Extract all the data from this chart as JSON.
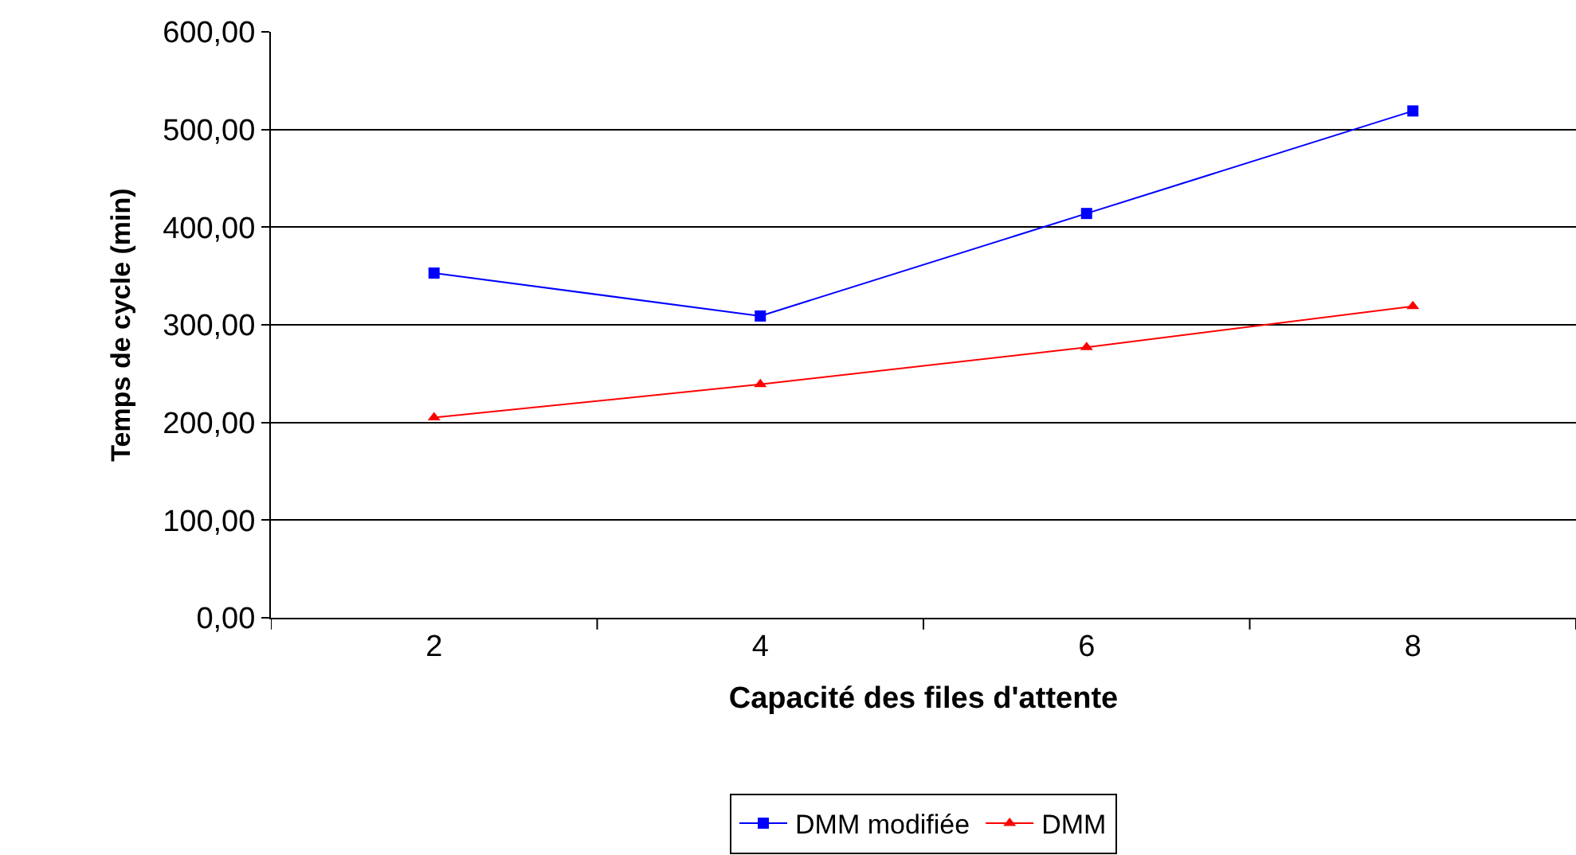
{
  "chart_data": {
    "type": "line",
    "xlabel": "Capacité des files d'attente",
    "ylabel": "Temps de cycle (min)",
    "categories": [
      "2",
      "4",
      "6",
      "8"
    ],
    "series": [
      {
        "name": "DMM modifiée",
        "color": "#0000ff",
        "marker": "square",
        "values": [
          353,
          309,
          414,
          519
        ]
      },
      {
        "name": "DMM",
        "color": "#ff0000",
        "marker": "triangle",
        "values": [
          205,
          239,
          277,
          319
        ]
      }
    ],
    "ylim": [
      0,
      600
    ],
    "yticks": [
      {
        "value": 0,
        "label": "0,00"
      },
      {
        "value": 100,
        "label": "100,00"
      },
      {
        "value": 200,
        "label": "200,00"
      },
      {
        "value": 300,
        "label": "300,00"
      },
      {
        "value": 400,
        "label": "400,00"
      },
      {
        "value": 500,
        "label": "500,00"
      },
      {
        "value": 600,
        "label": "600,00"
      }
    ],
    "grid": "y",
    "legend": "bottom",
    "line_style": "solid"
  }
}
